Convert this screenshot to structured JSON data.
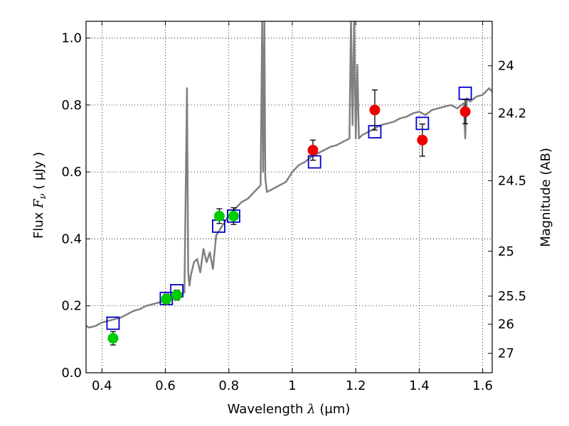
{
  "chart_data": {
    "type": "scatter",
    "xlabel": {
      "main": "Wavelength",
      "symbol": "λ",
      "unit": "(μm)"
    },
    "ylabel": {
      "main": "Flux",
      "symbol": "F",
      "subscript": "ν",
      "unit": "( μJy )"
    },
    "y2label": "Magnitude (AB)",
    "xlim": [
      0.35,
      1.63
    ],
    "ylim": [
      0.0,
      1.05
    ],
    "grid": true,
    "x_ticks": [
      0.4,
      0.6,
      0.8,
      1.0,
      1.2,
      1.4,
      1.6
    ],
    "x_tick_labels": [
      "0.4",
      "0.6",
      "0.8",
      "1",
      "1.2",
      "1.4",
      "1.6"
    ],
    "y_ticks": [
      0.0,
      0.2,
      0.4,
      0.6,
      0.8,
      1.0
    ],
    "y_tick_labels": [
      "0.0",
      "0.2",
      "0.4",
      "0.6",
      "0.8",
      "1.0"
    ],
    "y2_ticks": [
      {
        "label": "24",
        "flux": 0.917
      },
      {
        "label": "24.2",
        "flux": 0.775
      },
      {
        "label": "24.5",
        "flux": 0.574
      },
      {
        "label": "25",
        "flux": 0.363
      },
      {
        "label": "25.5",
        "flux": 0.229
      },
      {
        "label": "26",
        "flux": 0.145
      },
      {
        "label": "27",
        "flux": 0.058
      }
    ],
    "series": [
      {
        "kind": "line",
        "color": "#808080",
        "x": [
          0.35,
          0.36,
          0.38,
          0.4,
          0.42,
          0.44,
          0.46,
          0.48,
          0.5,
          0.52,
          0.54,
          0.56,
          0.58,
          0.6,
          0.62,
          0.64,
          0.65,
          0.66,
          0.668,
          0.672,
          0.676,
          0.68,
          0.69,
          0.7,
          0.71,
          0.72,
          0.73,
          0.74,
          0.75,
          0.76,
          0.78,
          0.8,
          0.82,
          0.84,
          0.86,
          0.88,
          0.89,
          0.9,
          0.905,
          0.908,
          0.912,
          0.915,
          0.92,
          0.94,
          0.96,
          0.98,
          1.0,
          1.02,
          1.04,
          1.06,
          1.08,
          1.1,
          1.12,
          1.14,
          1.16,
          1.18,
          1.185,
          1.19,
          1.195,
          1.2,
          1.205,
          1.21,
          1.22,
          1.24,
          1.26,
          1.28,
          1.3,
          1.32,
          1.34,
          1.36,
          1.38,
          1.4,
          1.42,
          1.44,
          1.46,
          1.48,
          1.5,
          1.52,
          1.54,
          1.545,
          1.55,
          1.56,
          1.58,
          1.6,
          1.62,
          1.63
        ],
        "y": [
          0.14,
          0.135,
          0.14,
          0.15,
          0.155,
          0.16,
          0.165,
          0.175,
          0.185,
          0.19,
          0.2,
          0.205,
          0.21,
          0.215,
          0.225,
          0.23,
          0.235,
          0.24,
          0.85,
          0.3,
          0.26,
          0.29,
          0.33,
          0.34,
          0.3,
          0.37,
          0.33,
          0.36,
          0.31,
          0.41,
          0.44,
          0.47,
          0.49,
          0.51,
          0.52,
          0.54,
          0.55,
          0.56,
          1.05,
          0.6,
          1.05,
          0.58,
          0.54,
          0.55,
          0.56,
          0.57,
          0.6,
          0.62,
          0.63,
          0.645,
          0.655,
          0.665,
          0.675,
          0.68,
          0.69,
          0.7,
          1.05,
          0.74,
          1.05,
          0.7,
          0.92,
          0.7,
          0.71,
          0.72,
          0.73,
          0.74,
          0.745,
          0.75,
          0.76,
          0.765,
          0.775,
          0.78,
          0.77,
          0.785,
          0.79,
          0.795,
          0.8,
          0.79,
          0.805,
          0.7,
          0.82,
          0.81,
          0.825,
          0.83,
          0.85,
          0.84
        ]
      },
      {
        "kind": "open-square",
        "color": "#0000cc",
        "x": [
          0.435,
          0.603,
          0.636,
          0.768,
          0.815,
          1.07,
          1.26,
          1.41,
          1.545
        ],
        "y": [
          0.148,
          0.222,
          0.245,
          0.438,
          0.468,
          0.63,
          0.72,
          0.745,
          0.835
        ]
      },
      {
        "kind": "filled-circle",
        "color": "#00cc00",
        "x": [
          0.435,
          0.603,
          0.636,
          0.77,
          0.815
        ],
        "y": [
          0.103,
          0.22,
          0.232,
          0.468,
          0.468
        ],
        "err": [
          0.02,
          0.015,
          0.015,
          0.022,
          0.025
        ]
      },
      {
        "kind": "filled-circle",
        "color": "#ee0000",
        "x": [
          1.065,
          1.26,
          1.41,
          1.545
        ],
        "y": [
          0.665,
          0.785,
          0.695,
          0.78
        ],
        "err": [
          0.03,
          0.06,
          0.048,
          0.036
        ]
      }
    ]
  }
}
